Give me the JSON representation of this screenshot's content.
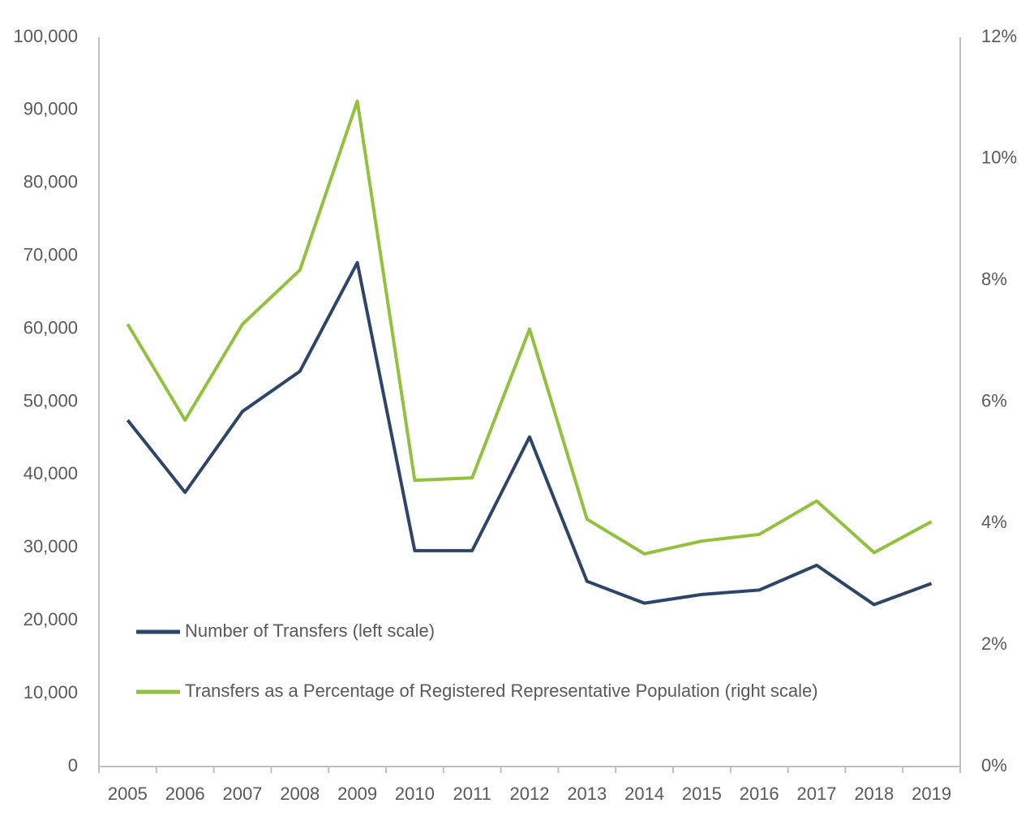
{
  "chart_data": {
    "type": "line",
    "categories": [
      "2005",
      "2006",
      "2007",
      "2008",
      "2009",
      "2010",
      "2011",
      "2012",
      "2013",
      "2014",
      "2015",
      "2016",
      "2017",
      "2018",
      "2019"
    ],
    "series": [
      {
        "name": "Number of Transfers (left scale)",
        "color": "#2e4469",
        "axis": "y",
        "values": [
          47500,
          37600,
          48700,
          54200,
          69100,
          29600,
          29600,
          45200,
          25400,
          22400,
          23600,
          24200,
          27600,
          22200,
          25100
        ]
      },
      {
        "name": "Transfers as a Percentage of Registered Representative Population (right scale)",
        "color": "#92c13e",
        "axis": "y2",
        "values": [
          7.28,
          5.7,
          7.28,
          8.17,
          10.95,
          4.71,
          4.75,
          7.2,
          4.07,
          3.5,
          3.71,
          3.82,
          4.37,
          3.52,
          4.03
        ]
      }
    ],
    "ylim": [
      0,
      100000
    ],
    "yticks": [
      0,
      {
        "value": 10000,
        "label": "10,000"
      },
      {
        "value": 20000,
        "label": "20,000"
      },
      {
        "value": 30000,
        "label": "30,000"
      },
      {
        "value": 40000,
        "label": "40,000"
      },
      {
        "value": 50000,
        "label": "50,000"
      },
      {
        "value": 60000,
        "label": "60,000"
      },
      {
        "value": 70000,
        "label": "70,000"
      },
      {
        "value": 80000,
        "label": "80,000"
      },
      {
        "value": 90000,
        "label": "90,000"
      },
      {
        "value": 100000,
        "label": "100,000"
      }
    ],
    "y2lim": [
      0,
      12
    ],
    "y2ticks": [
      {
        "value": 0,
        "label": "0%"
      },
      {
        "value": 2,
        "label": "2%"
      },
      {
        "value": 4,
        "label": "4%"
      },
      {
        "value": 6,
        "label": "6%"
      },
      {
        "value": 8,
        "label": "8%"
      },
      {
        "value": 10,
        "label": "10%"
      },
      {
        "value": 12,
        "label": "12%"
      }
    ],
    "legend": "lower-left",
    "grid": false
  }
}
